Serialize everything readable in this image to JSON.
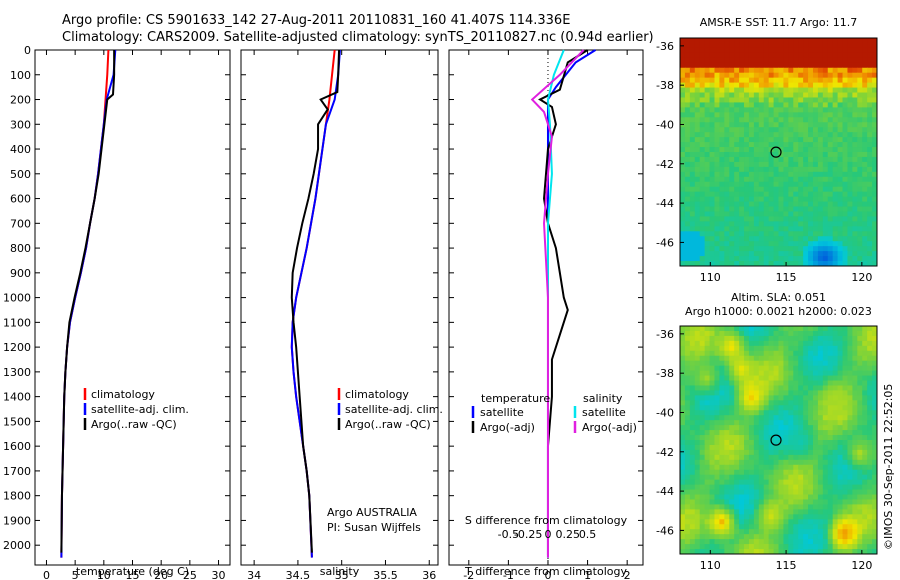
{
  "header": {
    "line1": "Argo profile: CS 5901633_142 27-Aug-2011 20110831_160 41.407S 114.336E",
    "line2": "Climatology: CARS2009. Satellite-adjusted climatology: synTS_20110827.nc (0.94d earlier)"
  },
  "side_label": "©IMOS 30-Sep-2011 22:52:05",
  "colors": {
    "climatology": "#ff0000",
    "satellite": "#0000ff",
    "argo": "#000000",
    "sat_salinity": "#00e5ee",
    "argo_salinity": "#e020e0"
  },
  "chart_data": [
    {
      "type": "line",
      "id": "temperature",
      "xlabel": "temperature (deg C)",
      "ylabel": "",
      "xlim": [
        -2,
        32
      ],
      "ylim": [
        2080,
        0
      ],
      "xticks": [
        "0",
        "5",
        "10",
        "15",
        "20",
        "25",
        "30"
      ],
      "yticks": [
        "0",
        "100",
        "200",
        "300",
        "400",
        "500",
        "600",
        "700",
        "800",
        "900",
        "1000",
        "1100",
        "1200",
        "1300",
        "1400",
        "1500",
        "1600",
        "1700",
        "1800",
        "1900",
        "2000"
      ],
      "legend": [
        "climatology",
        "satellite-adj. clim.",
        "Argo(..raw -QC)"
      ],
      "series": [
        {
          "name": "climatology",
          "x": [
            10.8,
            10.6,
            10.3,
            10.0,
            9.5,
            9.0,
            8.4,
            7.6,
            6.9,
            6.0,
            5.0,
            4.1,
            3.6,
            3.3,
            3.1,
            3.0,
            2.9,
            2.8,
            2.7,
            2.6
          ],
          "y": [
            0,
            100,
            200,
            300,
            400,
            500,
            600,
            700,
            800,
            900,
            1000,
            1100,
            1200,
            1300,
            1400,
            1500,
            1600,
            1700,
            1800,
            2050
          ]
        },
        {
          "name": "satellite-adj. clim.",
          "x": [
            12.0,
            11.7,
            10.5,
            10.0,
            9.5,
            9.0,
            8.4,
            7.6,
            6.9,
            6.0,
            5.0,
            4.1,
            3.6,
            3.3,
            3.1,
            3.0,
            2.9,
            2.8,
            2.7,
            2.6
          ],
          "y": [
            0,
            100,
            200,
            300,
            400,
            500,
            600,
            700,
            800,
            900,
            1000,
            1100,
            1200,
            1300,
            1400,
            1500,
            1600,
            1700,
            1800,
            2050
          ]
        },
        {
          "name": "Argo(..raw -QC)",
          "x": [
            11.8,
            11.8,
            11.6,
            10.6,
            10.1,
            9.6,
            9.1,
            8.4,
            7.6,
            6.8,
            5.9,
            4.9,
            4.0,
            3.6,
            3.3,
            3.1,
            2.9,
            2.8,
            2.7,
            2.6
          ],
          "y": [
            0,
            100,
            180,
            200,
            300,
            400,
            500,
            600,
            700,
            800,
            900,
            1000,
            1100,
            1200,
            1300,
            1400,
            1600,
            1700,
            1800,
            2030
          ]
        }
      ]
    },
    {
      "type": "line",
      "id": "salinity",
      "xlabel": "salinity",
      "xlim": [
        33.85,
        36.1
      ],
      "ylim": [
        2080,
        0
      ],
      "xticks": [
        "34",
        "34.5",
        "35",
        "35.5",
        "36"
      ],
      "legend": [
        "climatology",
        "satellite-adj. clim.",
        "Argo(..raw -QC)"
      ],
      "annotation": [
        "Argo AUSTRALIA",
        "PI: Susan Wijffels"
      ],
      "series": [
        {
          "name": "climatology",
          "x": [
            34.92,
            34.89,
            34.86,
            34.82,
            34.78,
            34.74,
            34.7,
            34.65,
            34.6,
            34.54,
            34.48,
            34.44,
            34.43,
            34.45,
            34.48,
            34.52,
            34.56,
            34.6,
            34.63,
            34.66
          ],
          "y": [
            0,
            100,
            200,
            300,
            400,
            500,
            600,
            700,
            800,
            900,
            1000,
            1100,
            1200,
            1300,
            1400,
            1500,
            1600,
            1700,
            1800,
            2050
          ]
        },
        {
          "name": "satellite-adj. clim.",
          "x": [
            34.98,
            34.96,
            34.92,
            34.82,
            34.78,
            34.74,
            34.7,
            34.65,
            34.6,
            34.54,
            34.48,
            34.44,
            34.43,
            34.45,
            34.48,
            34.52,
            34.56,
            34.6,
            34.63,
            34.66
          ],
          "y": [
            0,
            100,
            200,
            300,
            400,
            500,
            600,
            700,
            800,
            900,
            1000,
            1100,
            1200,
            1300,
            1400,
            1500,
            1600,
            1700,
            1800,
            2050
          ]
        },
        {
          "name": "Argo(..raw -QC)",
          "x": [
            34.97,
            34.96,
            34.95,
            34.76,
            34.84,
            34.73,
            34.73,
            34.68,
            34.62,
            34.55,
            34.49,
            34.44,
            34.43,
            34.45,
            34.48,
            34.52,
            34.56,
            34.6,
            34.63,
            34.66
          ],
          "y": [
            0,
            100,
            170,
            200,
            240,
            300,
            400,
            500,
            600,
            700,
            800,
            900,
            1000,
            1100,
            1200,
            1400,
            1600,
            1700,
            1800,
            2030
          ]
        }
      ]
    },
    {
      "type": "line",
      "id": "difference",
      "xlabel": "T difference from climatology",
      "xlabel_top": "S difference from climatology",
      "xlim": [
        -2.5,
        2.4
      ],
      "ylim": [
        2080,
        0
      ],
      "xticks": [
        "-2",
        "-1",
        "0",
        "1",
        "2"
      ],
      "xticks_top": [
        "-0.5",
        "-0.25",
        "0",
        "0.25",
        "0.5"
      ],
      "legend_headers": [
        "temperature",
        "salinity"
      ],
      "legend": [
        "satellite",
        "Argo(-adj)",
        "satellite",
        "Argo(-adj)"
      ],
      "series": [
        {
          "name": "satellite",
          "x": [
            1.2,
            0.7,
            0.2,
            0.0,
            0.0,
            0.0,
            0.0,
            0.0,
            0.0,
            0.0,
            0.0,
            0.0
          ],
          "y": [
            0,
            50,
            150,
            200,
            400,
            600,
            800,
            1000,
            1200,
            1500,
            1800,
            2050
          ]
        },
        {
          "name": "Argo(-adj)",
          "x": [
            1.0,
            0.5,
            0.3,
            -0.2,
            0.1,
            0.2,
            0.0,
            -0.1,
            0.0,
            0.2,
            0.3,
            0.4,
            0.5,
            0.3,
            0.1,
            0.1,
            0.0,
            0.0,
            0.0
          ],
          "y": [
            0,
            50,
            160,
            200,
            230,
            300,
            400,
            600,
            700,
            800,
            900,
            1000,
            1050,
            1150,
            1250,
            1400,
            1600,
            1800,
            2040
          ]
        },
        {
          "name": "satellite",
          "x": [
            0.4,
            0.15,
            0.0,
            0.05,
            0.1,
            0.0,
            0.0,
            0.0,
            0.0
          ],
          "y": [
            0,
            100,
            200,
            300,
            500,
            700,
            1000,
            1500,
            2050
          ]
        },
        {
          "name": "Argo(-adj)",
          "x": [
            0.9,
            0.3,
            -0.4,
            -0.1,
            0.1,
            0.0,
            -0.1,
            0.0,
            0.0,
            0.0
          ],
          "y": [
            0,
            100,
            200,
            250,
            350,
            500,
            700,
            1000,
            1500,
            2050
          ]
        }
      ]
    },
    {
      "type": "heatmap",
      "id": "sst",
      "title": "AMSR-E SST: 11.7  Argo: 11.7",
      "xlim": [
        108,
        121
      ],
      "ylim": [
        -47.2,
        -35.6
      ],
      "xticks": [
        "110",
        "115",
        "120"
      ],
      "yticks": [
        "-36",
        "-38",
        "-40",
        "-42",
        "-44",
        "-46"
      ],
      "marker": {
        "lon": 114.336,
        "lat": -41.407
      }
    },
    {
      "type": "heatmap",
      "id": "sla",
      "title": "Altim. SLA: 0.051",
      "subtitle": "Argo h1000: 0.0021  h2000: 0.023",
      "xlim": [
        108,
        121
      ],
      "ylim": [
        -47.2,
        -35.6
      ],
      "xticks": [
        "110",
        "115",
        "120"
      ],
      "yticks": [
        "-36",
        "-38",
        "-40",
        "-42",
        "-44",
        "-46"
      ],
      "marker": {
        "lon": 114.336,
        "lat": -41.407
      }
    }
  ]
}
